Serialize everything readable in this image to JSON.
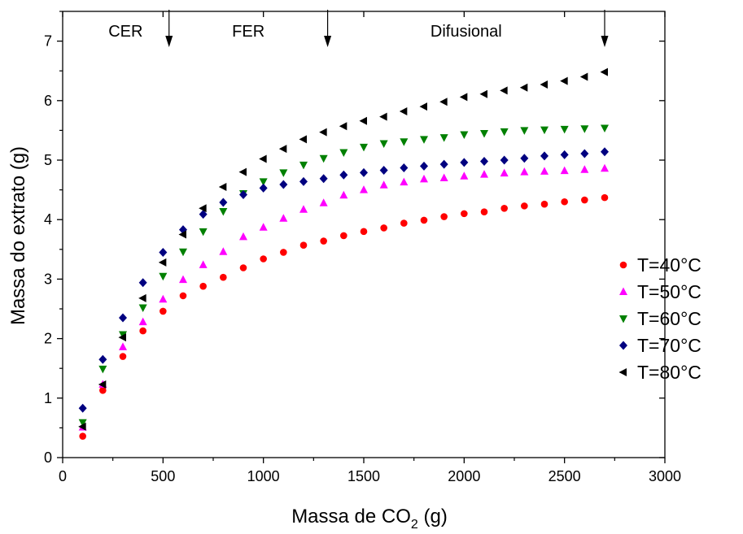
{
  "chart_data": {
    "type": "scatter",
    "xlabel_main": "Massa de CO",
    "xlabel_sub": "2",
    "xlabel_unit": " (g)",
    "ylabel": "Massa do extrato (g)",
    "xlim": [
      0,
      3000
    ],
    "ylim": [
      0,
      7.5
    ],
    "x_ticks": [
      0,
      500,
      1000,
      1500,
      2000,
      2500,
      3000
    ],
    "y_ticks": [
      0,
      1,
      2,
      3,
      4,
      5,
      6,
      7
    ],
    "grid": false,
    "legend_position": "right",
    "regions": [
      {
        "label": "CER",
        "boundary_x": 530
      },
      {
        "label": "FER",
        "boundary_x": 1320
      },
      {
        "label": "Difusional",
        "boundary_x": 2700
      }
    ],
    "x": [
      100,
      200,
      300,
      400,
      500,
      600,
      700,
      800,
      900,
      1000,
      1100,
      1200,
      1300,
      1400,
      1500,
      1600,
      1700,
      1800,
      1900,
      2000,
      2100,
      2200,
      2300,
      2400,
      2500,
      2600,
      2700
    ],
    "series": [
      {
        "name": "T=40°C",
        "color": "#ff0000",
        "marker": "circle",
        "values": [
          0.36,
          1.13,
          1.7,
          2.13,
          2.46,
          2.72,
          2.88,
          3.03,
          3.19,
          3.34,
          3.45,
          3.57,
          3.64,
          3.73,
          3.8,
          3.86,
          3.94,
          3.99,
          4.05,
          4.1,
          4.13,
          4.19,
          4.23,
          4.26,
          4.3,
          4.33,
          4.37
        ]
      },
      {
        "name": "T=50°C",
        "color": "#ff00ff",
        "marker": "triangle-up",
        "values": [
          0.51,
          1.23,
          1.86,
          2.28,
          2.66,
          2.99,
          3.24,
          3.46,
          3.71,
          3.87,
          4.02,
          4.17,
          4.28,
          4.41,
          4.5,
          4.58,
          4.63,
          4.68,
          4.7,
          4.73,
          4.76,
          4.78,
          4.8,
          4.81,
          4.82,
          4.84,
          4.86
        ]
      },
      {
        "name": "T=60°C",
        "color": "#008000",
        "marker": "triangle-down",
        "values": [
          0.59,
          1.49,
          2.07,
          2.52,
          3.05,
          3.46,
          3.8,
          4.14,
          4.44,
          4.64,
          4.79,
          4.92,
          5.03,
          5.13,
          5.22,
          5.28,
          5.31,
          5.35,
          5.38,
          5.43,
          5.45,
          5.48,
          5.5,
          5.51,
          5.52,
          5.53,
          5.54
        ]
      },
      {
        "name": "T=70°C",
        "color": "#000080",
        "marker": "diamond",
        "values": [
          0.83,
          1.65,
          2.35,
          2.94,
          3.45,
          3.83,
          4.09,
          4.29,
          4.42,
          4.53,
          4.59,
          4.64,
          4.69,
          4.75,
          4.79,
          4.83,
          4.87,
          4.9,
          4.93,
          4.96,
          4.98,
          5.0,
          5.03,
          5.07,
          5.09,
          5.11,
          5.14
        ]
      },
      {
        "name": "T=80°C",
        "color": "#000000",
        "marker": "triangle-left",
        "values": [
          0.52,
          1.23,
          2.02,
          2.68,
          3.28,
          3.75,
          4.19,
          4.55,
          4.8,
          5.02,
          5.19,
          5.35,
          5.47,
          5.57,
          5.66,
          5.73,
          5.82,
          5.9,
          5.98,
          6.06,
          6.11,
          6.17,
          6.22,
          6.27,
          6.33,
          6.4,
          6.48
        ]
      }
    ]
  }
}
